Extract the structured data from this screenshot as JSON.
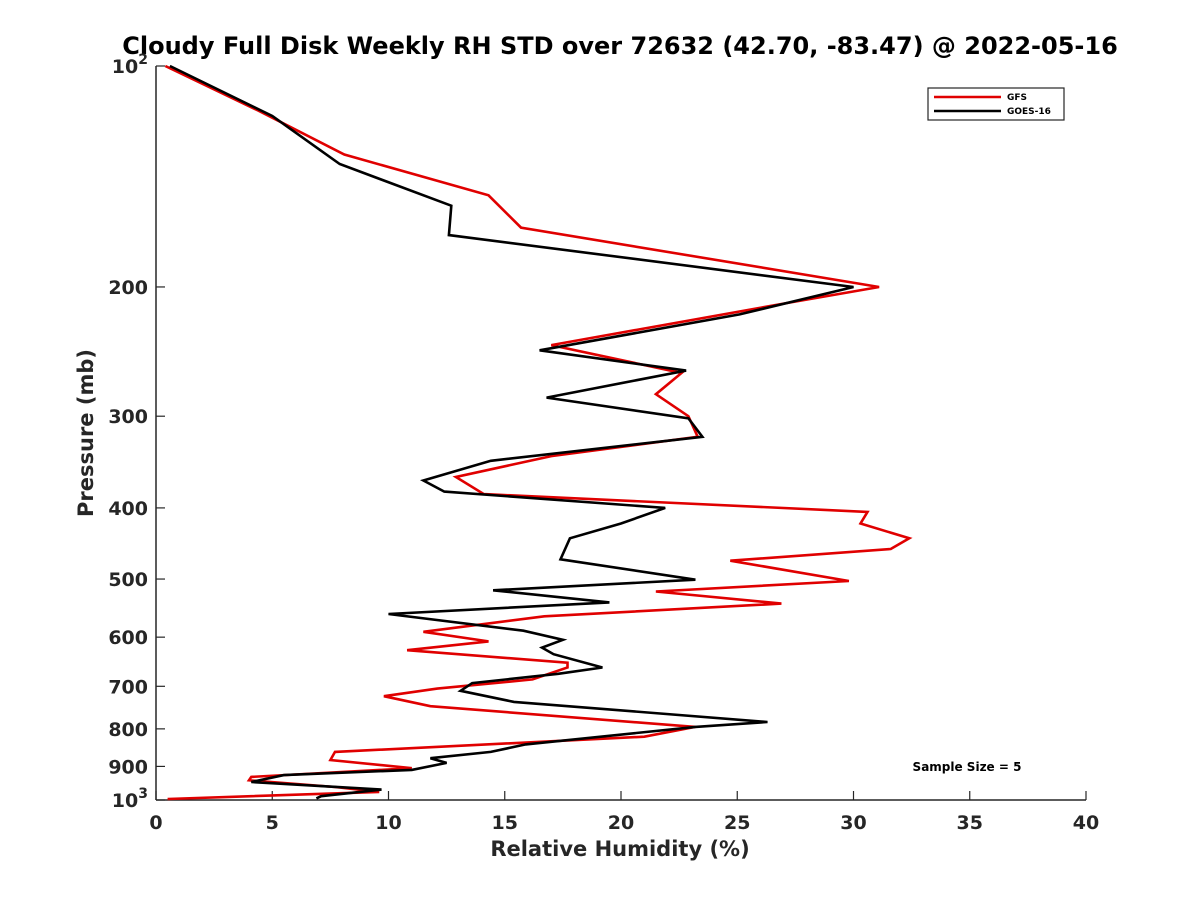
{
  "chart_data": {
    "type": "line",
    "title": "Cloudy Full Disk Weekly RH STD over 72632 (42.70, -83.47) @ 2022-05-16",
    "xlabel": "Relative Humidity (%)",
    "ylabel": "Pressure (mb)",
    "xlim": [
      0,
      40
    ],
    "ylim": [
      100,
      1000
    ],
    "yscale": "log",
    "y_reversed": true,
    "x_ticks": [
      "0",
      "5",
      "10",
      "15",
      "20",
      "25",
      "30",
      "35",
      "40"
    ],
    "y_ticks": [
      {
        "value": 100,
        "label": "10",
        "sup": "2"
      },
      {
        "value": 200,
        "label": "200"
      },
      {
        "value": 300,
        "label": "300"
      },
      {
        "value": 400,
        "label": "400"
      },
      {
        "value": 500,
        "label": "500"
      },
      {
        "value": 600,
        "label": "600"
      },
      {
        "value": 700,
        "label": "700"
      },
      {
        "value": 800,
        "label": "800"
      },
      {
        "value": 900,
        "label": "900"
      },
      {
        "value": 1000,
        "label": "10",
        "sup": "3"
      }
    ],
    "legend_position": "top-right",
    "annotation": "Sample Size = 5",
    "series": [
      {
        "name": "GFS",
        "color": "#e00000",
        "points": [
          [
            0.4,
            100
          ],
          [
            4.4,
            115
          ],
          [
            8.1,
            132
          ],
          [
            14.3,
            150
          ],
          [
            15.7,
            166
          ],
          [
            31.1,
            200
          ],
          [
            26.9,
            211
          ],
          [
            17.0,
            240
          ],
          [
            22.6,
            262
          ],
          [
            21.5,
            280
          ],
          [
            22.9,
            300
          ],
          [
            23.3,
            320
          ],
          [
            17.0,
            340
          ],
          [
            12.9,
            363
          ],
          [
            14.1,
            383
          ],
          [
            30.6,
            405
          ],
          [
            30.3,
            420
          ],
          [
            32.4,
            440
          ],
          [
            31.6,
            455
          ],
          [
            24.7,
            472
          ],
          [
            29.8,
            503
          ],
          [
            21.5,
            520
          ],
          [
            26.9,
            540
          ],
          [
            16.7,
            562
          ],
          [
            11.5,
            590
          ],
          [
            14.3,
            608
          ],
          [
            10.8,
            625
          ],
          [
            17.7,
            650
          ],
          [
            17.7,
            660
          ],
          [
            16.2,
            685
          ],
          [
            12.1,
            705
          ],
          [
            9.8,
            722
          ],
          [
            11.8,
            745
          ],
          [
            23.2,
            795
          ],
          [
            21.0,
            820
          ],
          [
            7.7,
            860
          ],
          [
            7.5,
            882
          ],
          [
            11.0,
            905
          ],
          [
            4.1,
            930
          ],
          [
            4.0,
            940
          ],
          [
            7.7,
            960
          ],
          [
            9.6,
            975
          ],
          [
            0.5,
            997
          ]
        ]
      },
      {
        "name": "GOES-16",
        "color": "#000000",
        "points": [
          [
            0.6,
            100
          ],
          [
            5.0,
            117
          ],
          [
            7.9,
            136
          ],
          [
            12.7,
            155
          ],
          [
            12.6,
            170
          ],
          [
            30.0,
            200
          ],
          [
            25.1,
            218
          ],
          [
            16.5,
            244
          ],
          [
            22.8,
            260
          ],
          [
            16.8,
            283
          ],
          [
            22.9,
            302
          ],
          [
            23.5,
            320
          ],
          [
            14.4,
            345
          ],
          [
            11.5,
            367
          ],
          [
            12.4,
            380
          ],
          [
            21.9,
            400
          ],
          [
            20.0,
            420
          ],
          [
            17.8,
            440
          ],
          [
            17.4,
            470
          ],
          [
            23.2,
            501
          ],
          [
            14.5,
            518
          ],
          [
            19.5,
            538
          ],
          [
            10.0,
            558
          ],
          [
            15.8,
            588
          ],
          [
            17.5,
            605
          ],
          [
            16.6,
            620
          ],
          [
            17.1,
            633
          ],
          [
            19.2,
            660
          ],
          [
            17.3,
            673
          ],
          [
            13.6,
            693
          ],
          [
            13.1,
            710
          ],
          [
            15.4,
            735
          ],
          [
            26.3,
            783
          ],
          [
            23.2,
            795
          ],
          [
            15.9,
            840
          ],
          [
            14.4,
            860
          ],
          [
            11.8,
            877
          ],
          [
            12.5,
            890
          ],
          [
            11.0,
            910
          ],
          [
            5.5,
            925
          ],
          [
            4.1,
            945
          ],
          [
            9.7,
            968
          ],
          [
            7.1,
            988
          ],
          [
            6.9,
            995
          ]
        ]
      }
    ]
  }
}
